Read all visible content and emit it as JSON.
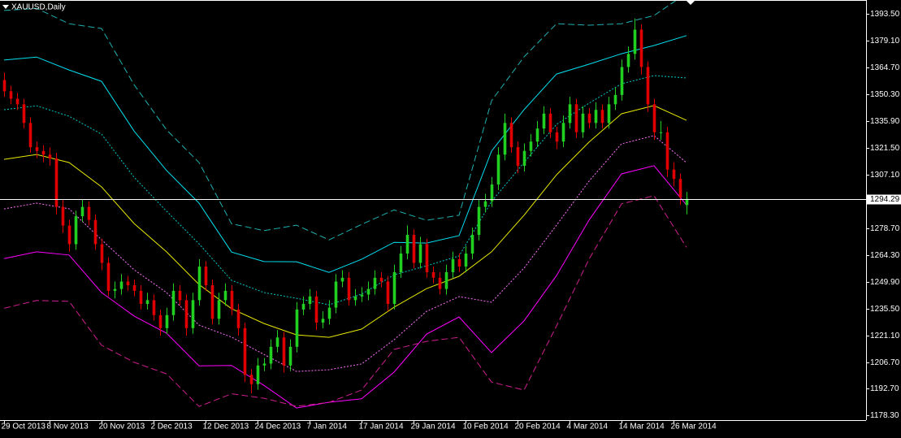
{
  "chart_data": {
    "type": "candlestick",
    "title": "XAUUSD,Daily",
    "ylim": [
      1175.7,
      1400.9
    ],
    "yticks": [
      {
        "value": 1393.5,
        "label": "1393.50"
      },
      {
        "value": 1379.1,
        "label": "1379.10"
      },
      {
        "value": 1364.7,
        "label": "1364.70"
      },
      {
        "value": 1350.3,
        "label": "1350.30"
      },
      {
        "value": 1335.9,
        "label": "1335.90"
      },
      {
        "value": 1321.5,
        "label": "1321.50"
      },
      {
        "value": 1307.1,
        "label": "1307.10"
      },
      {
        "value": 1278.7,
        "label": "1278.70"
      },
      {
        "value": 1264.3,
        "label": "1264.30"
      },
      {
        "value": 1249.9,
        "label": "1249.90"
      },
      {
        "value": 1235.5,
        "label": "1235.50"
      },
      {
        "value": 1221.1,
        "label": "1221.10"
      },
      {
        "value": 1206.7,
        "label": "1206.70"
      },
      {
        "value": 1192.7,
        "label": "1192.70"
      },
      {
        "value": 1178.3,
        "label": "1178.30"
      }
    ],
    "last_price": {
      "value": 1294.29,
      "label": "1294.29"
    },
    "xlim": [
      -0.625,
      132.625
    ],
    "xticks": [
      {
        "value": 0,
        "label": "29 Oct 2013"
      },
      {
        "value": 7,
        "label": "8 Nov 2013"
      },
      {
        "value": 15,
        "label": "20 Nov 2013"
      },
      {
        "value": 23,
        "label": "2 Dec 2013"
      },
      {
        "value": 31,
        "label": "12 Dec 2013"
      },
      {
        "value": 39,
        "label": "24 Dec 2013"
      },
      {
        "value": 47,
        "label": "7 Jan 2014"
      },
      {
        "value": 55,
        "label": "17 Jan 2014"
      },
      {
        "value": 63,
        "label": "29 Jan 2014"
      },
      {
        "value": 71,
        "label": "10 Feb 2014"
      },
      {
        "value": 79,
        "label": "20 Feb 2014"
      },
      {
        "value": 87,
        "label": "4 Mar 2014"
      },
      {
        "value": 95,
        "label": "14 Mar 2014"
      },
      {
        "value": 103,
        "label": "26 Mar 2014"
      }
    ],
    "up_color": "#22d022",
    "down_color": "#e00000",
    "candles": [
      [
        1358,
        1362,
        1349,
        1352
      ],
      [
        1352,
        1355,
        1345,
        1348
      ],
      [
        1348,
        1351,
        1342,
        1345
      ],
      [
        1345,
        1348,
        1332,
        1335
      ],
      [
        1335,
        1338,
        1319,
        1322
      ],
      [
        1322,
        1325,
        1316,
        1320
      ],
      [
        1320,
        1323,
        1314,
        1318
      ],
      [
        1318,
        1322,
        1312,
        1316
      ],
      [
        1316,
        1319,
        1286,
        1290
      ],
      [
        1290,
        1294,
        1276,
        1280
      ],
      [
        1280,
        1283,
        1266,
        1270
      ],
      [
        1270,
        1288,
        1267,
        1285
      ],
      [
        1285,
        1294,
        1282,
        1290
      ],
      [
        1290,
        1293,
        1280,
        1283
      ],
      [
        1283,
        1286,
        1267,
        1270
      ],
      [
        1270,
        1273,
        1256,
        1260
      ],
      [
        1260,
        1263,
        1242,
        1245
      ],
      [
        1245,
        1250,
        1241,
        1246
      ],
      [
        1246,
        1254,
        1243,
        1250
      ],
      [
        1250,
        1253,
        1245,
        1248
      ],
      [
        1248,
        1251,
        1242,
        1245
      ],
      [
        1245,
        1248,
        1235,
        1238
      ],
      [
        1238,
        1244,
        1235,
        1240
      ],
      [
        1240,
        1243,
        1229,
        1232
      ],
      [
        1232,
        1235,
        1221,
        1225
      ],
      [
        1225,
        1236,
        1222,
        1232
      ],
      [
        1232,
        1249,
        1229,
        1245
      ],
      [
        1245,
        1248,
        1237,
        1240
      ],
      [
        1240,
        1243,
        1221,
        1225
      ],
      [
        1225,
        1244,
        1222,
        1240
      ],
      [
        1240,
        1262,
        1237,
        1258
      ],
      [
        1258,
        1261,
        1245,
        1248
      ],
      [
        1248,
        1251,
        1227,
        1230
      ],
      [
        1230,
        1244,
        1227,
        1240
      ],
      [
        1240,
        1249,
        1237,
        1245
      ],
      [
        1245,
        1248,
        1232,
        1235
      ],
      [
        1235,
        1238,
        1221,
        1225
      ],
      [
        1225,
        1228,
        1196,
        1200
      ],
      [
        1200,
        1203,
        1190,
        1195
      ],
      [
        1195,
        1209,
        1192,
        1205
      ],
      [
        1205,
        1209,
        1202,
        1206
      ],
      [
        1206,
        1219,
        1203,
        1215
      ],
      [
        1215,
        1224,
        1212,
        1220
      ],
      [
        1220,
        1223,
        1201,
        1205
      ],
      [
        1205,
        1219,
        1202,
        1215
      ],
      [
        1215,
        1239,
        1212,
        1235
      ],
      [
        1235,
        1242,
        1232,
        1238
      ],
      [
        1238,
        1246,
        1235,
        1242
      ],
      [
        1242,
        1245,
        1224,
        1228
      ],
      [
        1228,
        1234,
        1225,
        1230
      ],
      [
        1230,
        1240,
        1227,
        1236
      ],
      [
        1236,
        1254,
        1233,
        1250
      ],
      [
        1250,
        1256,
        1247,
        1252
      ],
      [
        1252,
        1255,
        1237,
        1240
      ],
      [
        1240,
        1246,
        1237,
        1242
      ],
      [
        1242,
        1247,
        1239,
        1243
      ],
      [
        1243,
        1250,
        1240,
        1246
      ],
      [
        1246,
        1256,
        1243,
        1252
      ],
      [
        1252,
        1255,
        1247,
        1250
      ],
      [
        1250,
        1253,
        1234,
        1238
      ],
      [
        1238,
        1259,
        1235,
        1255
      ],
      [
        1255,
        1269,
        1252,
        1265
      ],
      [
        1265,
        1280,
        1262,
        1275
      ],
      [
        1275,
        1278,
        1257,
        1260
      ],
      [
        1260,
        1274,
        1257,
        1270
      ],
      [
        1270,
        1273,
        1252,
        1255
      ],
      [
        1255,
        1258,
        1249,
        1252
      ],
      [
        1252,
        1255,
        1243,
        1246
      ],
      [
        1246,
        1259,
        1243,
        1255
      ],
      [
        1255,
        1266,
        1252,
        1262
      ],
      [
        1262,
        1265,
        1255,
        1258
      ],
      [
        1258,
        1269,
        1255,
        1265
      ],
      [
        1265,
        1279,
        1262,
        1275
      ],
      [
        1275,
        1294,
        1272,
        1290
      ],
      [
        1290,
        1297,
        1287,
        1293
      ],
      [
        1293,
        1306,
        1290,
        1302
      ],
      [
        1302,
        1322,
        1299,
        1318
      ],
      [
        1318,
        1340,
        1315,
        1335
      ],
      [
        1335,
        1338,
        1319,
        1322
      ],
      [
        1322,
        1325,
        1308,
        1312
      ],
      [
        1312,
        1324,
        1309,
        1320
      ],
      [
        1320,
        1329,
        1317,
        1325
      ],
      [
        1325,
        1336,
        1322,
        1332
      ],
      [
        1332,
        1344,
        1329,
        1340
      ],
      [
        1340,
        1343,
        1327,
        1330
      ],
      [
        1330,
        1333,
        1321,
        1325
      ],
      [
        1325,
        1339,
        1322,
        1335
      ],
      [
        1335,
        1349,
        1332,
        1345
      ],
      [
        1345,
        1348,
        1327,
        1330
      ],
      [
        1330,
        1344,
        1327,
        1340
      ],
      [
        1340,
        1343,
        1332,
        1335
      ],
      [
        1335,
        1346,
        1332,
        1342
      ],
      [
        1342,
        1345,
        1332,
        1335
      ],
      [
        1335,
        1349,
        1332,
        1345
      ],
      [
        1345,
        1354,
        1342,
        1350
      ],
      [
        1350,
        1369,
        1347,
        1365
      ],
      [
        1365,
        1376,
        1362,
        1372
      ],
      [
        1372,
        1391,
        1369,
        1385
      ],
      [
        1385,
        1388,
        1361,
        1365
      ],
      [
        1365,
        1368,
        1341,
        1345
      ],
      [
        1345,
        1348,
        1326,
        1330
      ],
      [
        1330,
        1336,
        1326,
        1330
      ],
      [
        1330,
        1333,
        1306,
        1310
      ],
      [
        1310,
        1314,
        1301,
        1305
      ],
      [
        1305,
        1308,
        1291,
        1295
      ],
      [
        1291,
        1298,
        1286,
        1294.29
      ]
    ],
    "line_x": [
      0,
      5,
      10,
      15,
      20,
      25,
      30,
      35,
      40,
      45,
      50,
      55,
      60,
      65,
      70,
      75,
      80,
      85,
      90,
      95,
      100,
      105
    ],
    "lines": [
      {
        "color": "#e8e800",
        "dash": "solid",
        "values": [
          1315.5,
          1318.1,
          1313.8,
          1300.7,
          1281.1,
          1265.9,
          1248.4,
          1235.4,
          1227.5,
          1221.4,
          1220.1,
          1224.5,
          1236.2,
          1246.2,
          1252.8,
          1265.9,
          1285.5,
          1307.2,
          1324.7,
          1339.9,
          1344.3,
          1336.4
        ]
      },
      {
        "color": "#00c8c8",
        "dash": "dotted",
        "values": [
          1342.1,
          1344.2,
          1338.6,
          1329.0,
          1305.9,
          1287.7,
          1270.2,
          1250.6,
          1244.1,
          1241.0,
          1237.5,
          1243.2,
          1253.6,
          1258.4,
          1263.7,
          1292.9,
          1313.8,
          1334.2,
          1345.6,
          1356.0,
          1360.4,
          1359.1
        ]
      },
      {
        "color": "#ff70ff",
        "dash": "dotted",
        "values": [
          1288.9,
          1292.0,
          1289.0,
          1272.4,
          1256.3,
          1244.1,
          1226.6,
          1220.2,
          1210.9,
          1201.8,
          1202.7,
          1205.8,
          1218.8,
          1234.0,
          1241.9,
          1238.9,
          1257.2,
          1280.2,
          1303.8,
          1323.8,
          1328.2,
          1313.7
        ]
      },
      {
        "color": "#00e0f0",
        "dash": "solid",
        "values": [
          1368.7,
          1370.3,
          1363.4,
          1357.3,
          1330.7,
          1309.5,
          1292.0,
          1265.8,
          1260.7,
          1260.6,
          1254.9,
          1261.9,
          1271.0,
          1270.6,
          1274.6,
          1319.9,
          1342.1,
          1361.2,
          1366.5,
          1372.1,
          1376.5,
          1381.8
        ]
      },
      {
        "color": "#ff00ff",
        "dash": "solid",
        "values": [
          1262.3,
          1265.9,
          1264.2,
          1244.1,
          1231.5,
          1222.3,
          1204.8,
          1205.0,
          1194.3,
          1182.2,
          1185.3,
          1187.1,
          1201.4,
          1221.8,
          1231.0,
          1211.9,
          1228.9,
          1253.2,
          1282.9,
          1307.7,
          1312.1,
          1291.0
        ]
      },
      {
        "color": "#20b0b0",
        "dash": "dashed",
        "values": [
          1395.3,
          1396.4,
          1388.2,
          1385.6,
          1355.5,
          1331.3,
          1313.8,
          1281.0,
          1277.3,
          1280.2,
          1272.3,
          1280.6,
          1288.4,
          1282.8,
          1285.5,
          1346.9,
          1370.4,
          1388.2,
          1387.4,
          1388.2,
          1392.6,
          1404.5
        ]
      },
      {
        "color": "#d02090",
        "dash": "dashed",
        "values": [
          1235.7,
          1239.8,
          1239.4,
          1215.8,
          1206.7,
          1200.5,
          1183.0,
          1189.8,
          1187.4,
          1183.1,
          1185.2,
          1191.8,
          1213.6,
          1217.9,
          1220.1,
          1196.1,
          1191.8,
          1226.2,
          1262.0,
          1291.6,
          1296.0,
          1268.3
        ]
      }
    ]
  }
}
